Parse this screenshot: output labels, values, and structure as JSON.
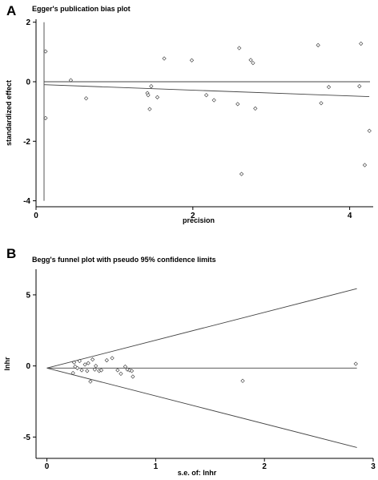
{
  "chart_data": [
    {
      "panel": "A",
      "type": "scatter",
      "title": "Egger's publication bias plot",
      "xlabel": "precision",
      "ylabel": "standardized effect",
      "xlim": [
        0,
        4.3
      ],
      "ylim": [
        -4.2,
        2.1
      ],
      "xticks": [
        0,
        2,
        4
      ],
      "yticks": [
        -4,
        -2,
        0,
        2
      ],
      "grid": false,
      "confidence_interval": {
        "x": 0,
        "y_low": -4.0,
        "y_high": 2.0
      },
      "reference_line": {
        "y": 0
      },
      "regression_line": {
        "x": [
          0,
          4.25
        ],
        "y": [
          -0.1,
          -0.5
        ]
      },
      "points": {
        "x": [
          0.02,
          0.02,
          0.35,
          0.55,
          1.35,
          1.36,
          1.38,
          1.4,
          1.48,
          1.57,
          1.93,
          2.12,
          2.22,
          2.53,
          2.55,
          2.58,
          2.7,
          2.73,
          2.76,
          3.58,
          3.62,
          3.72,
          4.12,
          4.14,
          4.19,
          4.25
        ],
        "y": [
          1.02,
          -1.22,
          0.05,
          -0.56,
          -0.38,
          -0.45,
          -0.92,
          -0.15,
          -0.52,
          0.78,
          0.72,
          -0.45,
          -0.62,
          -0.75,
          1.13,
          -3.1,
          0.73,
          0.63,
          -0.9,
          1.23,
          -0.72,
          -0.18,
          -0.15,
          1.28,
          -2.8,
          -1.65
        ]
      }
    },
    {
      "panel": "B",
      "type": "scatter",
      "title": "Begg's funnel plot with pseudo 95% confidence limits",
      "xlabel": "s.e. of: lnhr",
      "ylabel": "lnhr",
      "xlim": [
        -0.1,
        3.0
      ],
      "ylim": [
        -6.5,
        6.8
      ],
      "xticks": [
        0,
        1,
        2,
        3
      ],
      "yticks": [
        -5,
        0,
        5
      ],
      "grid": false,
      "reference_line": {
        "y": -0.15
      },
      "funnel_limits": {
        "center": -0.15,
        "slope": 1.96,
        "x_end": 2.85
      },
      "points": {
        "x": [
          0.24,
          0.25,
          0.26,
          0.28,
          0.3,
          0.32,
          0.35,
          0.37,
          0.38,
          0.4,
          0.42,
          0.44,
          0.45,
          0.48,
          0.5,
          0.55,
          0.6,
          0.65,
          0.68,
          0.72,
          0.74,
          0.76,
          0.78,
          0.79,
          1.8,
          2.84
        ],
        "y": [
          -0.5,
          0.25,
          -0.05,
          -0.15,
          0.35,
          -0.3,
          0.1,
          -0.35,
          0.2,
          -1.1,
          0.45,
          -0.25,
          0.0,
          -0.35,
          -0.3,
          0.4,
          0.55,
          -0.3,
          -0.55,
          -0.05,
          -0.25,
          -0.3,
          -0.35,
          -0.75,
          -1.05,
          0.15
        ]
      }
    }
  ]
}
